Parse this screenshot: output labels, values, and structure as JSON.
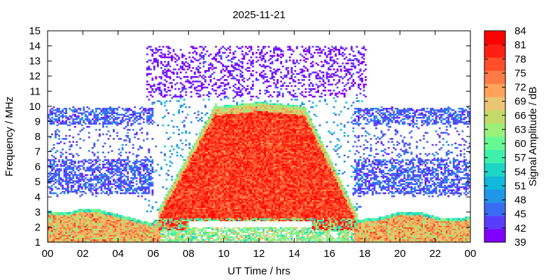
{
  "chart_data": {
    "type": "heatmap",
    "title": "2025-11-21",
    "xlabel": "UT Time / hrs",
    "ylabel": "Frequency / MHz",
    "colorbar_label": "Signal Amplitude / dB",
    "xlim": [
      0,
      24
    ],
    "ylim": [
      1,
      15
    ],
    "x_ticks": [
      "00",
      "02",
      "04",
      "06",
      "08",
      "10",
      "12",
      "14",
      "16",
      "18",
      "20",
      "22",
      "00"
    ],
    "y_ticks": [
      "1",
      "2",
      "3",
      "4",
      "5",
      "6",
      "7",
      "8",
      "9",
      "10",
      "11",
      "12",
      "13",
      "14",
      "15"
    ],
    "colorbar_ticks": [
      "39",
      "42",
      "45",
      "48",
      "51",
      "54",
      "57",
      "60",
      "63",
      "66",
      "69",
      "72",
      "75",
      "78",
      "81",
      "84"
    ],
    "colorbar_range": [
      39,
      84
    ],
    "colorbar_colors": [
      "#8000ff",
      "#5a3dfb",
      "#3a6cf3",
      "#1f96e8",
      "#12b8dc",
      "#1cd5c6",
      "#3ef0ac",
      "#66fa94",
      "#99f07a",
      "#c6da6a",
      "#ecc574",
      "#ffa25a",
      "#ff7a44",
      "#ff4e2a",
      "#ff1f10",
      "#ff0000"
    ],
    "grid": false,
    "regions": [
      {
        "desc": "night band",
        "t_start": 0,
        "t_end": 5.8,
        "f_low": 1,
        "f_high": 3.2,
        "amplitude": 72
      },
      {
        "desc": "night band",
        "t_start": 17.8,
        "t_end": 24,
        "f_low": 1,
        "f_high": 3.0,
        "amplitude": 72
      },
      {
        "desc": "day peak",
        "t_start": 6.3,
        "t_end": 17.5,
        "f_low": 1.8,
        "f_high": 10.3,
        "amplitude": 80
      },
      {
        "desc": "scatter",
        "t_start": 0,
        "t_end": 6,
        "f_low": 4,
        "f_high": 10,
        "amplitude": 47
      },
      {
        "desc": "scatter",
        "t_start": 17.5,
        "t_end": 24,
        "f_low": 4,
        "f_high": 10,
        "amplitude": 47
      },
      {
        "desc": "upper scatter",
        "t_start": 5.6,
        "t_end": 18.1,
        "f_low": 10.8,
        "f_high": 14,
        "amplitude": 42
      }
    ]
  }
}
